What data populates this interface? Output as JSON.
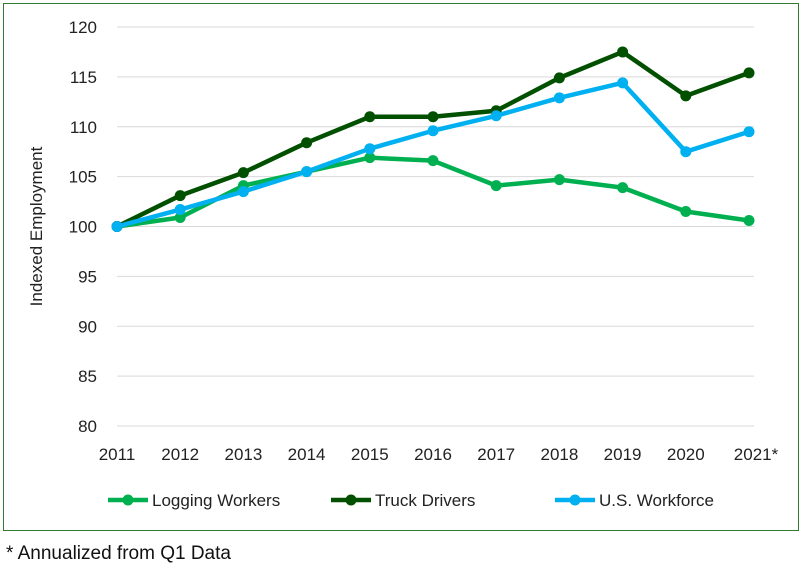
{
  "chart_data": {
    "type": "line",
    "ylabel": "Indexed Employment",
    "xlabel": "",
    "categories": [
      "2011",
      "2012",
      "2013",
      "2014",
      "2015",
      "2016",
      "2017",
      "2018",
      "2019",
      "2020",
      "2021*"
    ],
    "ylim": [
      80,
      120
    ],
    "yticks": [
      80,
      85,
      90,
      95,
      100,
      105,
      110,
      115,
      120
    ],
    "grid": true,
    "legend": "bottom",
    "series": [
      {
        "name": "Logging Workers",
        "color": "#00b050",
        "values": [
          100,
          100.9,
          104.1,
          105.5,
          106.9,
          106.6,
          104.1,
          104.7,
          103.9,
          101.5,
          100.6
        ]
      },
      {
        "name": "Truck Drivers",
        "color": "#005000",
        "values": [
          100,
          103.1,
          105.4,
          108.4,
          111.0,
          111.0,
          111.6,
          114.9,
          117.5,
          113.1,
          115.4
        ]
      },
      {
        "name": "U.S. Workforce",
        "color": "#00b0f0",
        "values": [
          100,
          101.7,
          103.5,
          105.5,
          107.8,
          109.6,
          111.1,
          112.9,
          114.4,
          107.5,
          109.5
        ]
      }
    ]
  },
  "footnote": "* Annualized from Q1 Data"
}
